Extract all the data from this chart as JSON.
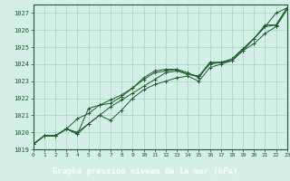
{
  "xlabel": "Graphe pression niveau de la mer (hPa)",
  "ylim": [
    1019,
    1027.5
  ],
  "xlim": [
    0,
    23
  ],
  "yticks": [
    1019,
    1020,
    1021,
    1022,
    1023,
    1024,
    1025,
    1026,
    1027
  ],
  "xticks": [
    0,
    1,
    2,
    3,
    4,
    5,
    6,
    7,
    8,
    9,
    10,
    11,
    12,
    13,
    14,
    15,
    16,
    17,
    18,
    19,
    20,
    21,
    22,
    23
  ],
  "bg_color": "#d4eee8",
  "plot_bg_color": "#d4eee8",
  "label_bg_color": "#4a9a7a",
  "grid_color": "#a8d4c4",
  "line_color": "#1a5c2a",
  "series": [
    [
      1019.3,
      1019.8,
      1019.8,
      1020.2,
      1020.0,
      1020.5,
      1021.0,
      1021.5,
      1021.9,
      1022.3,
      1022.7,
      1023.1,
      1023.5,
      1023.6,
      1023.4,
      1023.3,
      1024.0,
      1024.1,
      1024.2,
      1024.8,
      1025.5,
      1026.2,
      1027.0,
      1027.3
    ],
    [
      1019.3,
      1019.8,
      1019.8,
      1020.2,
      1019.9,
      1021.4,
      1021.6,
      1021.7,
      1022.1,
      1022.6,
      1023.2,
      1023.6,
      1023.7,
      1023.7,
      1023.5,
      1023.2,
      1024.1,
      1024.1,
      1024.3,
      1024.9,
      1025.5,
      1026.3,
      1026.3,
      1027.3
    ],
    [
      1019.3,
      1019.8,
      1019.8,
      1020.2,
      1020.8,
      1021.1,
      1021.6,
      1021.9,
      1022.2,
      1022.6,
      1023.1,
      1023.5,
      1023.6,
      1023.7,
      1023.4,
      1023.3,
      1024.1,
      1024.1,
      1024.3,
      1024.9,
      1025.5,
      1026.2,
      1026.3,
      1027.3
    ],
    [
      1019.3,
      1019.8,
      1019.8,
      1020.2,
      1019.9,
      1020.5,
      1021.0,
      1020.7,
      1021.3,
      1022.0,
      1022.5,
      1022.8,
      1023.0,
      1023.2,
      1023.3,
      1023.0,
      1023.8,
      1024.0,
      1024.2,
      1024.8,
      1025.2,
      1025.8,
      1026.2,
      1027.2
    ]
  ]
}
